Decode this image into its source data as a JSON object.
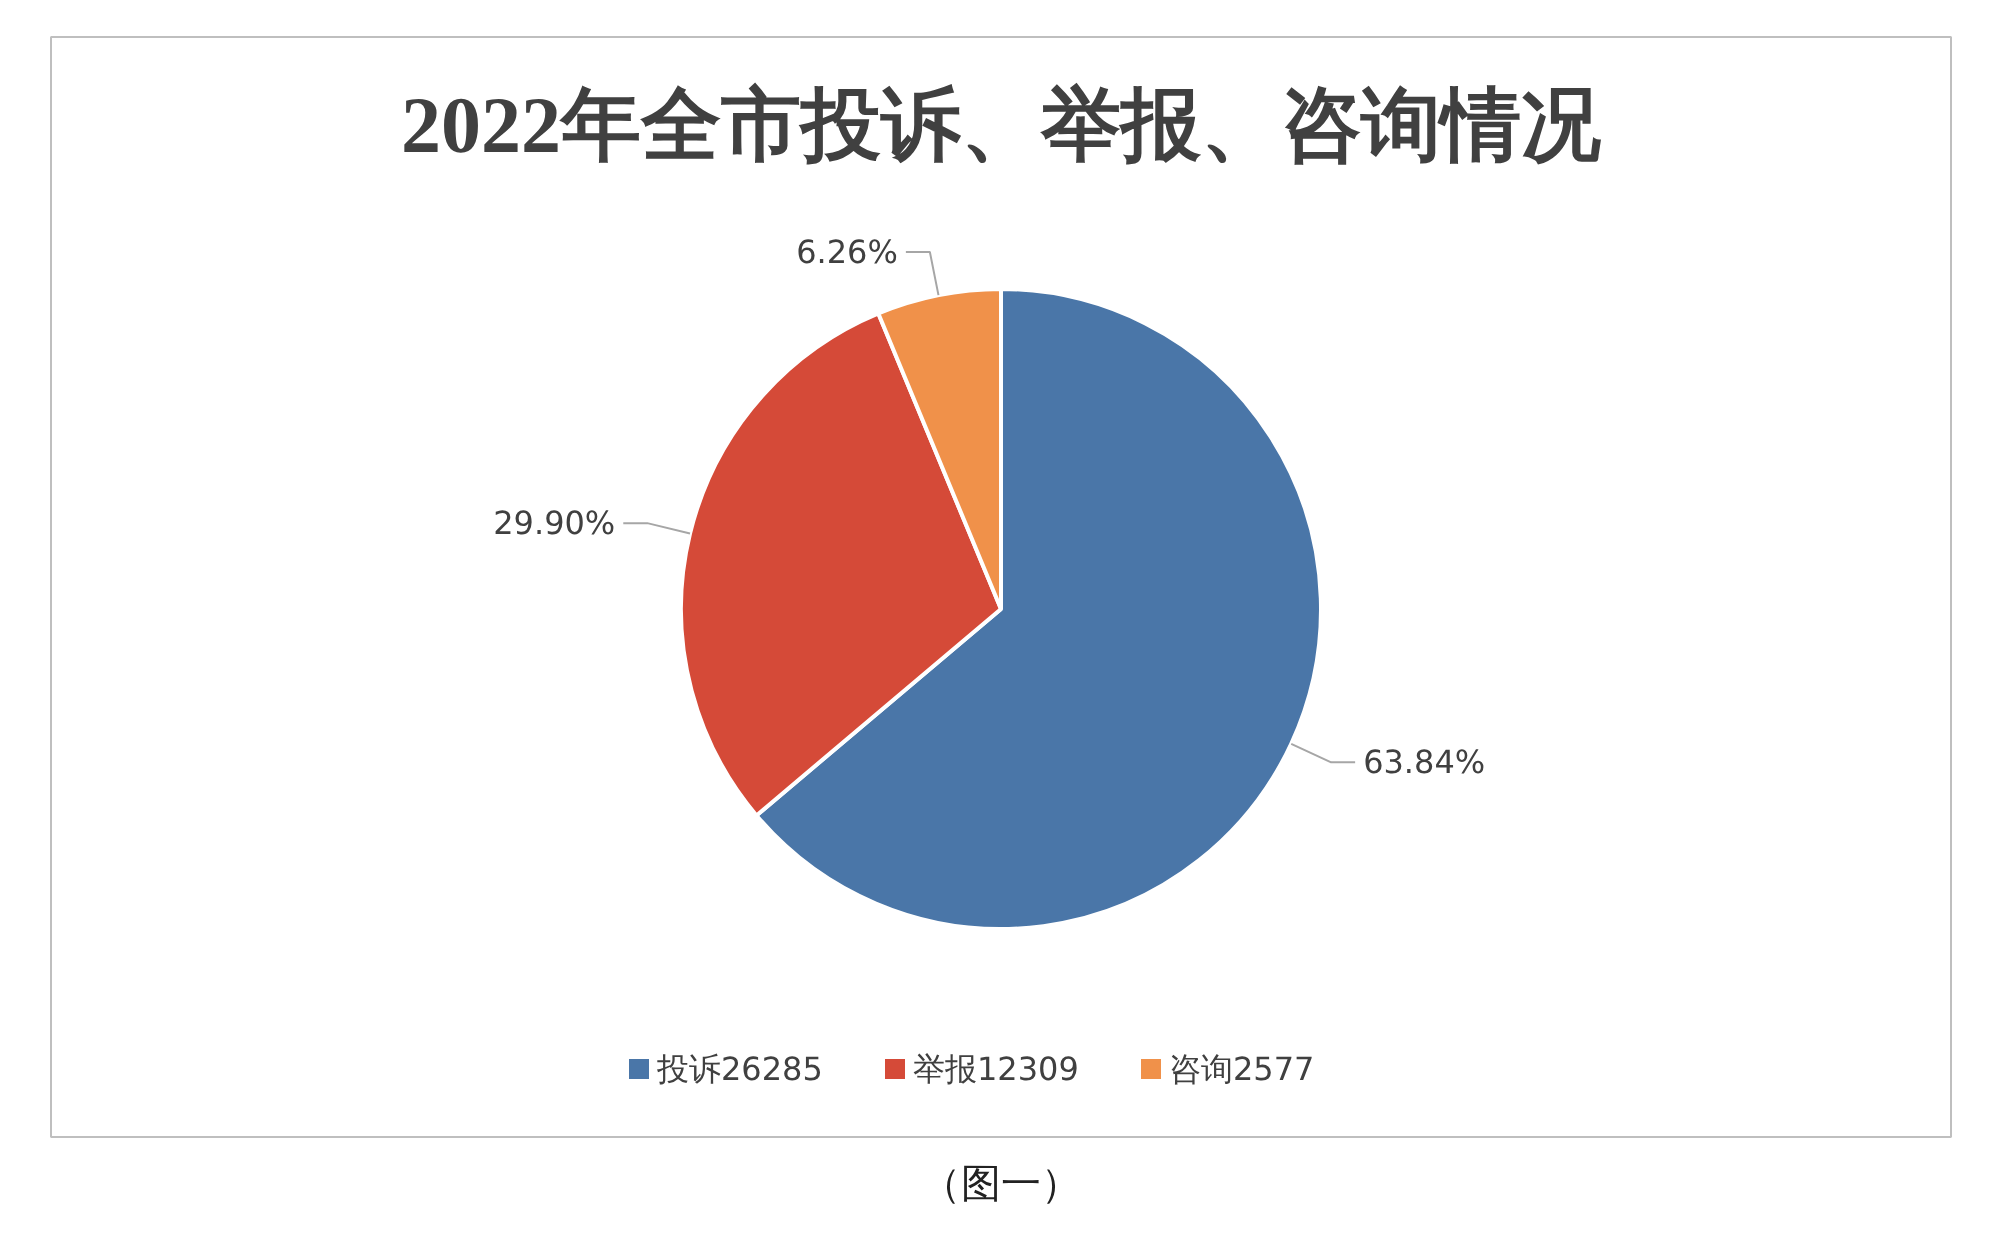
{
  "chart_data": {
    "type": "pie",
    "title": "2022年全市投诉、举报、咨询情况",
    "categories": [
      "投诉26285",
      "举报12309",
      "咨询2577"
    ],
    "values": [
      63.84,
      29.9,
      6.26
    ],
    "colors": [
      "#4a76a8",
      "#d54a38",
      "#f0914a"
    ],
    "value_labels": [
      "63.84%",
      "29.90%",
      "6.26%"
    ],
    "legend": "bottom",
    "annotations": [
      "（图一）"
    ]
  }
}
